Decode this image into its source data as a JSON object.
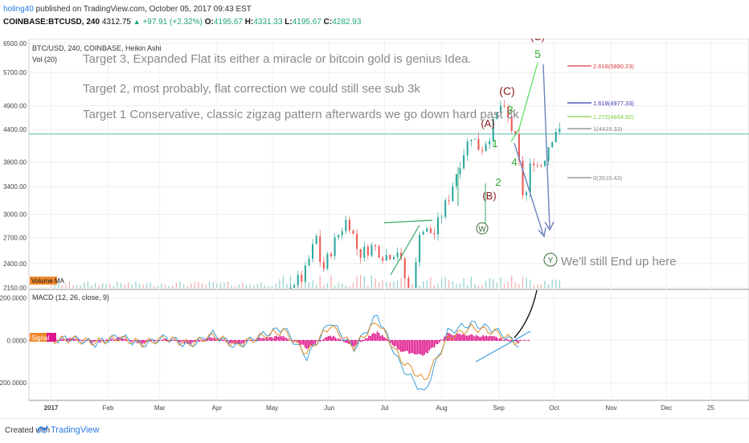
{
  "header": {
    "user": "holing40",
    "published_text": "published on TradingView.com, October 05, 2017 09:43 EST",
    "symbol": "COINBASE:BTCUSD, 240",
    "last": "4312.75",
    "change": "+97.91 (+2.32%)",
    "o_label": "O:",
    "o_value": "4195.67",
    "h_label": "H:",
    "h_value": "4331.33",
    "l_label": "L:",
    "l_value": "4195.67",
    "c_label": "C:",
    "c_value": "4282.93"
  },
  "legend": {
    "series_title": "BTC/USD, 240, COINBASE, Heikin Ashi",
    "vol_label": "Vol (20)",
    "volume_ma": "Volume MA",
    "macd_label": "MACD (12, 26, close, 9)",
    "signal_tag": "Signal"
  },
  "annotations": {
    "target3": "Target 3, Expanded Flat its either a miracle or bitcoin gold is genius Idea.",
    "target2": "Target 2, most probably, flat correction we could still see sub 3k",
    "target1": "Target 1 Conservative, classic zigzag pattern afterwards we go down hard past 3k",
    "end_note": "We'll still End up here"
  },
  "colors": {
    "up": "#26a69a",
    "down": "#ef5350",
    "dark_red": "#8b1a1a",
    "green_wave": "#33aa33",
    "arrow_blue": "#6b82b8",
    "macd_line": "#3d9fdc",
    "signal_line": "#e08e2a",
    "hist": "#e0148c",
    "fib_2618": "#d63b3b",
    "fib_1618": "#3a3ab8",
    "fib_1272": "#7fcf3c",
    "fib_1": "#888888",
    "fib_0": "#888888"
  },
  "footer": {
    "created_with": "Created with",
    "brand": "TradingView"
  },
  "chart_data": [
    {
      "type": "candlestick",
      "title": "BTC/USD, 240, COINBASE, Heikin Ashi",
      "x_tick_labels": [
        "2017",
        "Feb",
        "Mar",
        "Apr",
        "May",
        "Jun",
        "Jul",
        "Aug",
        "Sep",
        "Oct",
        "Nov",
        "Dec",
        "25"
      ],
      "y_tick_labels": [
        "6500.00",
        "5700.00",
        "4900.00",
        "4400.00",
        "3800.00",
        "3400.00",
        "3000.00",
        "2700.00",
        "2400.00",
        "2150.00"
      ],
      "y_scale": "log",
      "ylim": [
        2150,
        6500
      ],
      "last_price_line": 4312.75,
      "price_series": [
        [
          "2017-05-10",
          2180
        ],
        [
          "2017-05-18",
          2250
        ],
        [
          "2017-05-25",
          2700
        ],
        [
          "2017-05-28",
          2300
        ],
        [
          "2017-06-04",
          2650
        ],
        [
          "2017-06-11",
          2950
        ],
        [
          "2017-06-17",
          2500
        ],
        [
          "2017-06-25",
          2600
        ],
        [
          "2017-07-01",
          2480
        ],
        [
          "2017-07-08",
          2550
        ],
        [
          "2017-07-16",
          1950
        ],
        [
          "2017-07-20",
          2800
        ],
        [
          "2017-07-28",
          2750
        ],
        [
          "2017-08-05",
          3250
        ],
        [
          "2017-08-12",
          3900
        ],
        [
          "2017-08-17",
          4300
        ],
        [
          "2017-08-22",
          4000
        ],
        [
          "2017-08-27",
          4300
        ],
        [
          "2017-09-02",
          4900
        ],
        [
          "2017-09-06",
          4600
        ],
        [
          "2017-09-10",
          4200
        ],
        [
          "2017-09-14",
          3300
        ],
        [
          "2017-09-15",
          3100
        ],
        [
          "2017-09-19",
          3900
        ],
        [
          "2017-09-23",
          3700
        ],
        [
          "2017-09-26",
          3900
        ],
        [
          "2017-09-29",
          4200
        ],
        [
          "2017-10-02",
          4400
        ],
        [
          "2017-10-05",
          4300
        ]
      ],
      "fib_levels": [
        {
          "label": "2.618(5880.23)",
          "value": 5880.23
        },
        {
          "label": "1.618(4977.33)",
          "value": 4977.33
        },
        {
          "label": "1.272(4664.92)",
          "value": 4664.92
        },
        {
          "label": "1(4419.33)",
          "value": 4419.33
        },
        {
          "label": "0(3516.43)",
          "value": 3516.43
        }
      ],
      "wave_labels": [
        "(C)",
        "5",
        "(C)",
        "3",
        "(A)",
        "1",
        "4",
        "2",
        "(B)",
        "W",
        "Y"
      ]
    },
    {
      "type": "line",
      "title": "MACD (12, 26, close, 9)",
      "y_tick_labels": [
        "200.0000",
        "0.0000",
        "-200.0000"
      ],
      "ylim": [
        -260,
        210
      ],
      "series": [
        {
          "name": "MACD",
          "values": [
            0,
            10,
            -15,
            20,
            -20,
            15,
            -25,
            30,
            -30,
            20,
            60,
            -80,
            90,
            -40,
            120,
            -120,
            -250,
            40,
            80,
            50,
            -20
          ]
        },
        {
          "name": "Signal",
          "values": [
            0,
            5,
            -8,
            12,
            -14,
            10,
            -18,
            22,
            -22,
            16,
            45,
            -60,
            70,
            -30,
            90,
            -90,
            -190,
            10,
            60,
            40,
            -10
          ]
        }
      ],
      "histogram": [
        0,
        8,
        -10,
        12,
        -12,
        8,
        -14,
        15,
        -18,
        10,
        20,
        -35,
        25,
        -25,
        40,
        -50,
        -70,
        30,
        25,
        15,
        -10
      ]
    }
  ]
}
